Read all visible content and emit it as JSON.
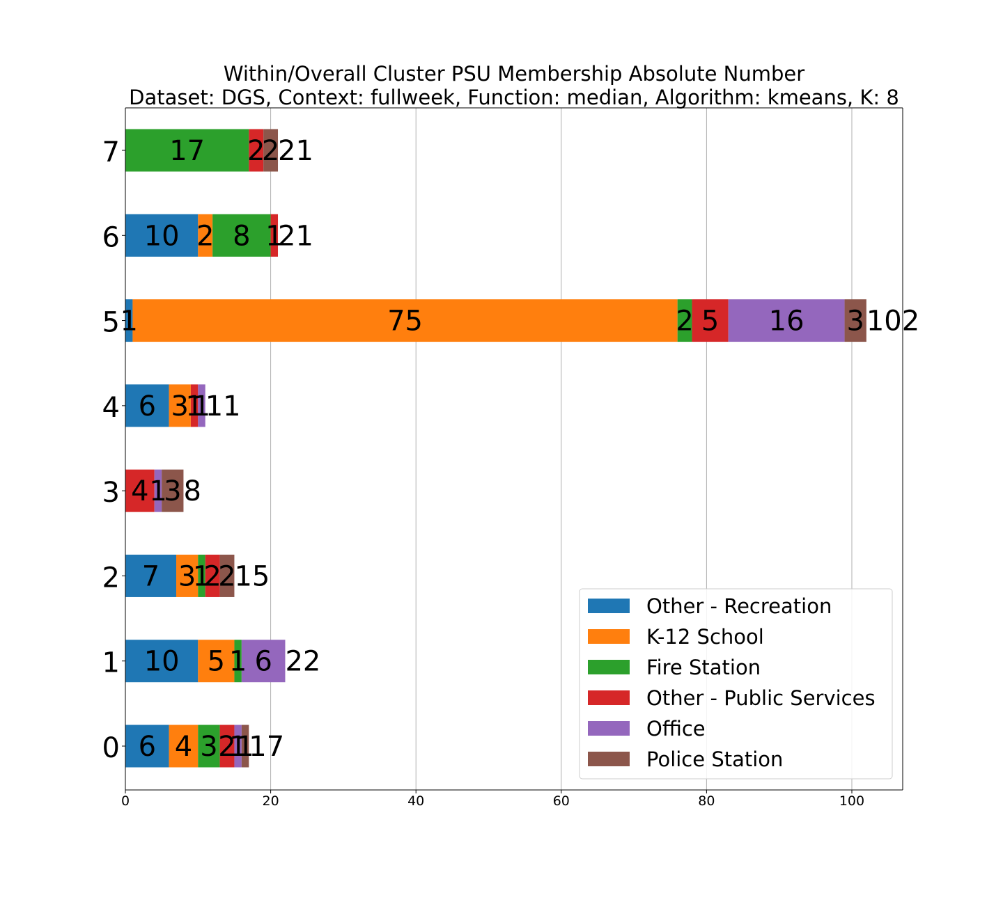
{
  "chart_data": {
    "type": "bar",
    "orientation": "horizontal",
    "stacked": true,
    "title": "Within/Overall Cluster PSU Membership Absolute Number",
    "subtitle": "Dataset: DGS, Context: fullweek, Function: median, Algorithm: kmeans, K: 8",
    "xlabel": "",
    "ylabel": "",
    "xlim": [
      0,
      107
    ],
    "xticks": [
      0,
      20,
      40,
      60,
      80,
      100
    ],
    "grid": "vertical",
    "legend_position": "lower-right",
    "categories": [
      "0",
      "1",
      "2",
      "3",
      "4",
      "5",
      "6",
      "7"
    ],
    "series": [
      {
        "name": "Other - Recreation",
        "color": "#1f77b4",
        "values": [
          6,
          10,
          7,
          0,
          6,
          1,
          10,
          0
        ]
      },
      {
        "name": "K-12 School",
        "color": "#ff7f0e",
        "values": [
          4,
          5,
          3,
          0,
          3,
          75,
          2,
          0
        ]
      },
      {
        "name": "Fire Station",
        "color": "#2ca02c",
        "values": [
          3,
          1,
          1,
          0,
          0,
          2,
          8,
          17
        ]
      },
      {
        "name": "Other - Public Services",
        "color": "#d62728",
        "values": [
          2,
          0,
          2,
          4,
          1,
          5,
          1,
          2
        ]
      },
      {
        "name": "Office",
        "color": "#9467bd",
        "values": [
          1,
          6,
          0,
          1,
          1,
          16,
          0,
          0
        ]
      },
      {
        "name": "Police Station",
        "color": "#8c564b",
        "values": [
          1,
          0,
          2,
          3,
          0,
          3,
          0,
          2
        ]
      }
    ],
    "totals": [
      17,
      22,
      15,
      8,
      11,
      102,
      21,
      21
    ]
  }
}
